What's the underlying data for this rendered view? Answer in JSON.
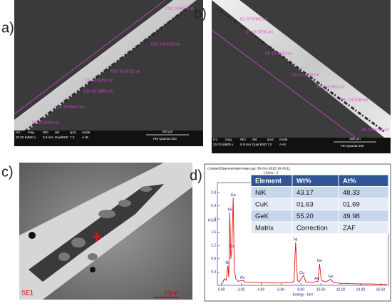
{
  "panels": {
    "a": {
      "label": "a)",
      "measurements": [
        "D13: 19.86574 um",
        "D12: 124.0322 um",
        "D11: 63.92712 um",
        "D5: 60.05212 um",
        "D10: 69.76865 um",
        "D9: 55.65462 um",
        "D8: 21.62915 um"
      ],
      "info_headers": [
        "HV",
        "mag",
        "WD",
        "det",
        "spot",
        "mode"
      ],
      "info_values": [
        "20.00 kV",
        "500 x",
        "9.9 mm",
        "DualBSD",
        "7.0",
        "A+B"
      ],
      "scale": "200 μm",
      "brand": "FEI   Quanta-200"
    },
    "b": {
      "label": "b)",
      "measurements": [
        "D1: 57.67666 um",
        "D2: 61.57750 um",
        "D3: 103.9863 um",
        "D4: 112.6468 um",
        "D7: 149.0852 um",
        "D8: 174.3148 um",
        "D6: 100.8121 um"
      ],
      "info_headers": [
        "HV",
        "mag",
        "WD",
        "det",
        "spot",
        "mode"
      ],
      "info_values": [
        "20.00 kV",
        "500 x",
        "9.9 mm",
        "Dual BSD",
        "7.0",
        "A+B"
      ],
      "scale": "200 μm",
      "brand": "FEI   Quanta-200"
    },
    "c": {
      "label": "c)",
      "detector": "SE1",
      "scale": "10μm"
    },
    "d": {
      "label": "d)",
      "header": "c:\\edax32\\genesis\\genmaps.spc   30-Oct-2013 16:43:11",
      "lsecs": "LSecs :  4",
      "table": {
        "header": [
          "Element",
          "Wt%",
          "At%"
        ],
        "rows": [
          [
            "NiK",
            "43.17",
            "48.33"
          ],
          [
            "CuK",
            "01.63",
            "01.69"
          ],
          [
            "GeK",
            "55.20",
            "49.98"
          ],
          [
            "Matrix",
            "Correction",
            "ZAF"
          ]
        ]
      }
    }
  },
  "chart_data": {
    "type": "line",
    "color": "#e01010",
    "x_label": "Energy - keV",
    "y_label": "KCnt",
    "xlim": [
      -0.4,
      16.8
    ],
    "ylim": [
      0,
      3.1
    ],
    "xticks": [
      {
        "value": 0,
        "label": "0.00"
      },
      {
        "value": 2,
        "label": "2.00"
      },
      {
        "value": 4,
        "label": "4.00"
      },
      {
        "value": 6,
        "label": "6.00"
      },
      {
        "value": 8,
        "label": "8.00"
      },
      {
        "value": 10,
        "label": "10.00"
      },
      {
        "value": 12,
        "label": "12.00"
      },
      {
        "value": 14,
        "label": "14.00"
      },
      {
        "value": 16,
        "label": "16.00"
      }
    ],
    "yticks": [
      0.4,
      0.8,
      1.2,
      1.6,
      2.0,
      2.4,
      2.8
    ],
    "x": [
      0.1,
      0.3,
      0.5,
      0.65,
      0.75,
      0.85,
      0.95,
      1.05,
      1.19,
      1.3,
      1.45,
      1.7,
      2.12,
      2.4,
      3,
      4,
      5,
      6,
      7,
      7.3,
      7.47,
      7.65,
      7.85,
      8.04,
      8.26,
      8.5,
      9.2,
      9.71,
      9.88,
      10.05,
      10.5,
      10.98,
      11.3,
      12,
      13,
      14,
      15,
      16,
      16.6
    ],
    "values": [
      0.05,
      0.2,
      0.15,
      0.6,
      0.25,
      2.2,
      0.8,
      1.1,
      2.65,
      0.5,
      0.2,
      0.12,
      0.15,
      0.1,
      0.09,
      0.08,
      0.07,
      0.07,
      0.08,
      0.12,
      1.3,
      0.15,
      0.1,
      0.22,
      0.3,
      0.1,
      0.09,
      0.12,
      0.65,
      0.15,
      0.1,
      0.18,
      0.08,
      0.06,
      0.05,
      0.04,
      0.04,
      0.03,
      0.03
    ],
    "annotations": [
      {
        "text": "Ge",
        "x": 1.19,
        "y": 2.72
      },
      {
        "text": "Ni",
        "x": 0.85,
        "y": 2.28
      },
      {
        "text": "Ni",
        "x": 0.6,
        "y": 0.68
      },
      {
        "text": "Cu",
        "x": 1.0,
        "y": 1.18
      },
      {
        "text": "Au",
        "x": 2.12,
        "y": 0.24
      },
      {
        "text": "Ni",
        "x": 7.47,
        "y": 1.38
      },
      {
        "text": "Cu",
        "x": 8.1,
        "y": 0.38
      },
      {
        "text": "Ge",
        "x": 9.88,
        "y": 0.74
      },
      {
        "text": "Ge",
        "x": 11.0,
        "y": 0.27
      },
      {
        "text": "Au",
        "x": 9.6,
        "y": 0.2
      }
    ]
  }
}
